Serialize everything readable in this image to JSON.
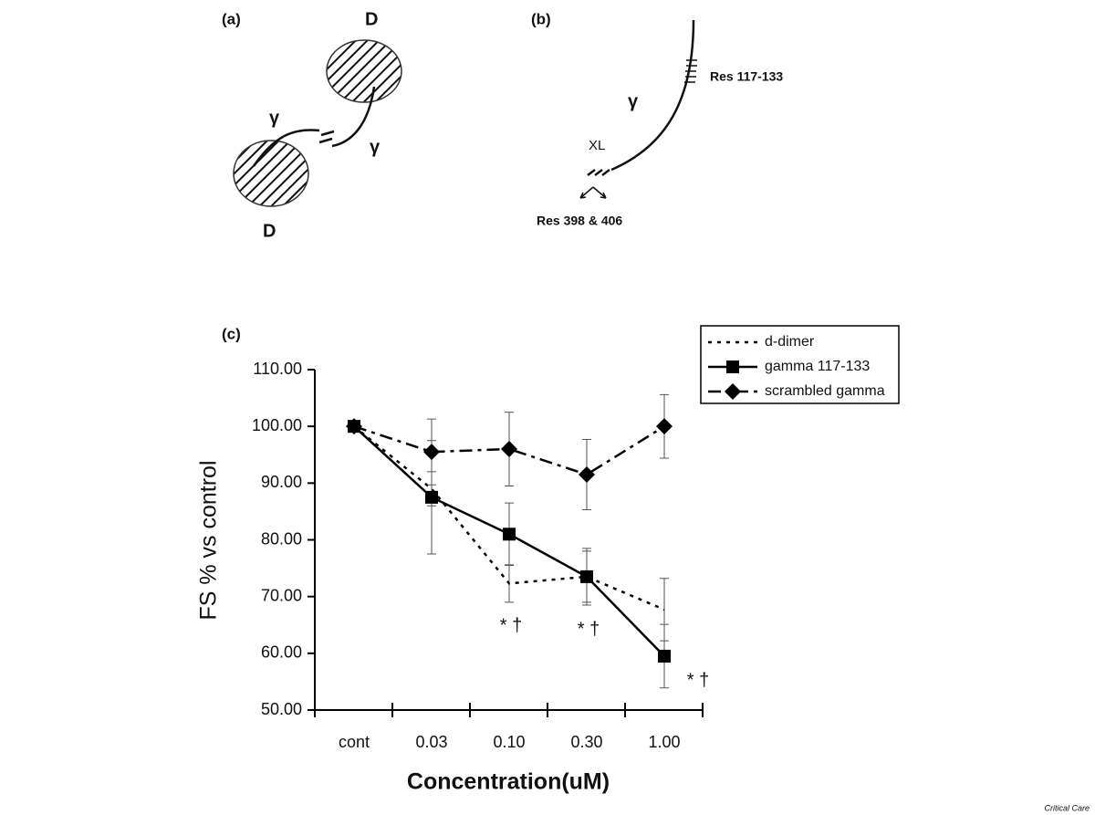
{
  "diagram_a": {
    "label": "(a)",
    "d_top": "D",
    "d_bottom": "D",
    "gamma_left": "γ",
    "gamma_right": "γ"
  },
  "diagram_b": {
    "label": "(b)",
    "res_top": "Res 117-133",
    "gamma": "γ",
    "xl": "XL",
    "res_bottom": "Res 398 & 406"
  },
  "chart_data": {
    "type": "line",
    "label": "(c)",
    "xlabel": "Concentration(uM)",
    "ylabel": "FS % vs control",
    "categories": [
      "cont",
      "0.03",
      "0.10",
      "0.30",
      "1.00"
    ],
    "ylim": [
      50,
      110
    ],
    "yticks": [
      {
        "value": 50,
        "label": "50.00"
      },
      {
        "value": 60,
        "label": "60.00"
      },
      {
        "value": 70,
        "label": "70.00"
      },
      {
        "value": 80,
        "label": "80.00"
      },
      {
        "value": 90,
        "label": "90.00"
      },
      {
        "value": 100,
        "label": "100.00"
      },
      {
        "value": 110,
        "label": "110.00"
      }
    ],
    "series": [
      {
        "name": "d-dimer",
        "color": "#000000",
        "style": "dotted",
        "marker": "none",
        "values": [
          100,
          89,
          72.3,
          73.5,
          67.7
        ],
        "errors": [
          0,
          3,
          3.3,
          4.5,
          5.5
        ]
      },
      {
        "name": "gamma 117-133",
        "color": "#000000",
        "style": "solid",
        "marker": "square",
        "values": [
          100,
          87.5,
          81,
          73.5,
          59.5
        ],
        "errors": [
          0,
          10,
          5.5,
          5,
          5.6
        ]
      },
      {
        "name": "scrambled gamma",
        "color": "#000000",
        "style": "dashdot",
        "marker": "diamond",
        "values": [
          100,
          95.5,
          96,
          91.5,
          100
        ],
        "errors": [
          0,
          5.8,
          6.5,
          6.2,
          5.6
        ]
      }
    ],
    "annotations": [
      "* †",
      "* †",
      "* †"
    ],
    "legend": "top-right",
    "source": "Critical Care"
  }
}
